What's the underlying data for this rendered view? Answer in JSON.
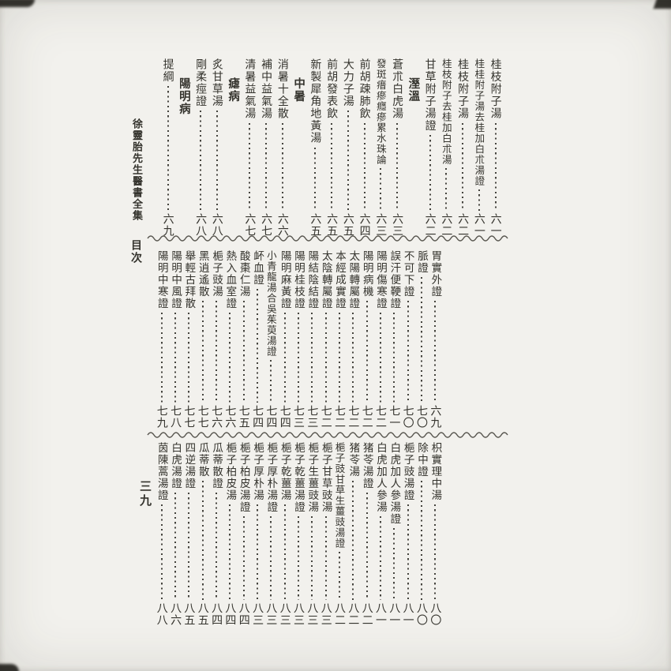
{
  "page": {
    "book_title": "徐靈胎先生醫書全集",
    "section_label": "目次",
    "folio_number": "三九",
    "ink_color": "#34332d",
    "paper_color": "#f2f1ed"
  },
  "toc_bands": [
    {
      "name": "top",
      "entries": [
        {
          "title": "桂枝附子湯",
          "page": "六一"
        },
        {
          "title": "桂桂附子湯去桂加白朮湯證",
          "page": "六一"
        },
        {
          "title": "桂枝附子湯",
          "page": "六二"
        },
        {
          "title": "桂枝附子去桂加白朮湯",
          "page": "六二"
        },
        {
          "title": "甘草附子湯證",
          "page": "六二"
        },
        {
          "title": "溼溫",
          "type": "section"
        },
        {
          "title": "蒼朮白虎湯",
          "page": "六三"
        },
        {
          "title": "發斑瘄瘮癮瘮累水珠論",
          "page": "六三"
        },
        {
          "title": "前胡疎肺飲",
          "page": "六四"
        },
        {
          "title": "大力子湯",
          "page": "六五"
        },
        {
          "title": "前胡發表飲",
          "page": "六五"
        },
        {
          "title": "新製犀角地黃湯",
          "page": "六五"
        },
        {
          "title": "中暑",
          "type": "section"
        },
        {
          "title": "消暑十全散",
          "page": "六六"
        },
        {
          "title": "補中益氣湯",
          "page": "六七"
        },
        {
          "title": "清暑益氣湯",
          "page": "六七"
        },
        {
          "title": "瘧病",
          "type": "section"
        },
        {
          "title": "炙甘草湯",
          "page": "六八"
        },
        {
          "title": "剛柔痙證",
          "page": "六八"
        },
        {
          "title": "陽明病",
          "type": "section"
        },
        {
          "title": "提綱",
          "page": "六九"
        }
      ]
    },
    {
      "name": "middle",
      "entries": [
        {
          "title": "胃實外證",
          "page": "六九"
        },
        {
          "title": "脈證",
          "page": "七〇"
        },
        {
          "title": "不可下證",
          "page": "七〇"
        },
        {
          "title": "誤汗便鞕證",
          "page": "七一"
        },
        {
          "title": "陽明傷寒證",
          "page": "七二"
        },
        {
          "title": "陽明病機",
          "page": "七二"
        },
        {
          "title": "太陽轉屬證",
          "page": "七二"
        },
        {
          "title": "本經成實證",
          "page": "七二"
        },
        {
          "title": "太陰轉屬證",
          "page": "七二"
        },
        {
          "title": "陽結陰結證",
          "page": "七三"
        },
        {
          "title": "陽明桂枝證",
          "page": "七三"
        },
        {
          "title": "陽明麻黃證",
          "page": "七四"
        },
        {
          "title": "小青龍湯合吳茱萸湯證",
          "page": "七四"
        },
        {
          "title": "衃血證",
          "page": "七四"
        },
        {
          "title": "酸棗仁湯",
          "page": "七五"
        },
        {
          "title": "熱入血室證",
          "page": "七六"
        },
        {
          "title": "梔子豉湯",
          "page": "七六"
        },
        {
          "title": "黑逍遙散",
          "page": "七七"
        },
        {
          "title": "舉輕古拜散",
          "page": "七七"
        },
        {
          "title": "陽明中風證",
          "page": "七八"
        },
        {
          "title": "陽明中寒證",
          "page": "七九"
        }
      ]
    },
    {
      "name": "bottom",
      "entries": [
        {
          "title": "枳實理中湯",
          "page": "八〇"
        },
        {
          "title": "除中證",
          "page": "八〇"
        },
        {
          "title": "梔子豉湯證",
          "page": "八一"
        },
        {
          "title": "白虎加人參湯證",
          "page": "八一"
        },
        {
          "title": "白虎加人參湯",
          "page": "八一"
        },
        {
          "title": "猪苓湯證",
          "page": "八二"
        },
        {
          "title": "猪苓湯",
          "page": "八二"
        },
        {
          "title": "梔子豉甘草生薑豉湯證",
          "page": "八二"
        },
        {
          "title": "梔子甘草豉湯",
          "page": "八三"
        },
        {
          "title": "梔子生薑豉湯",
          "page": "八三"
        },
        {
          "title": "梔子乾薑湯證",
          "page": "八三"
        },
        {
          "title": "梔子乾薑湯",
          "page": "八三"
        },
        {
          "title": "梔子厚朴湯證",
          "page": "八三"
        },
        {
          "title": "梔子厚朴湯",
          "page": "八三"
        },
        {
          "title": "梔子柏皮湯證",
          "page": "八四"
        },
        {
          "title": "梔子柏皮湯",
          "page": "八四"
        },
        {
          "title": "瓜蒂散證",
          "page": "八四"
        },
        {
          "title": "瓜蒂散",
          "page": "八五"
        },
        {
          "title": "四逆湯證",
          "page": "八五"
        },
        {
          "title": "白虎湯證",
          "page": "八六"
        },
        {
          "title": "茵陳蒿湯證",
          "page": "八八"
        }
      ]
    }
  ]
}
